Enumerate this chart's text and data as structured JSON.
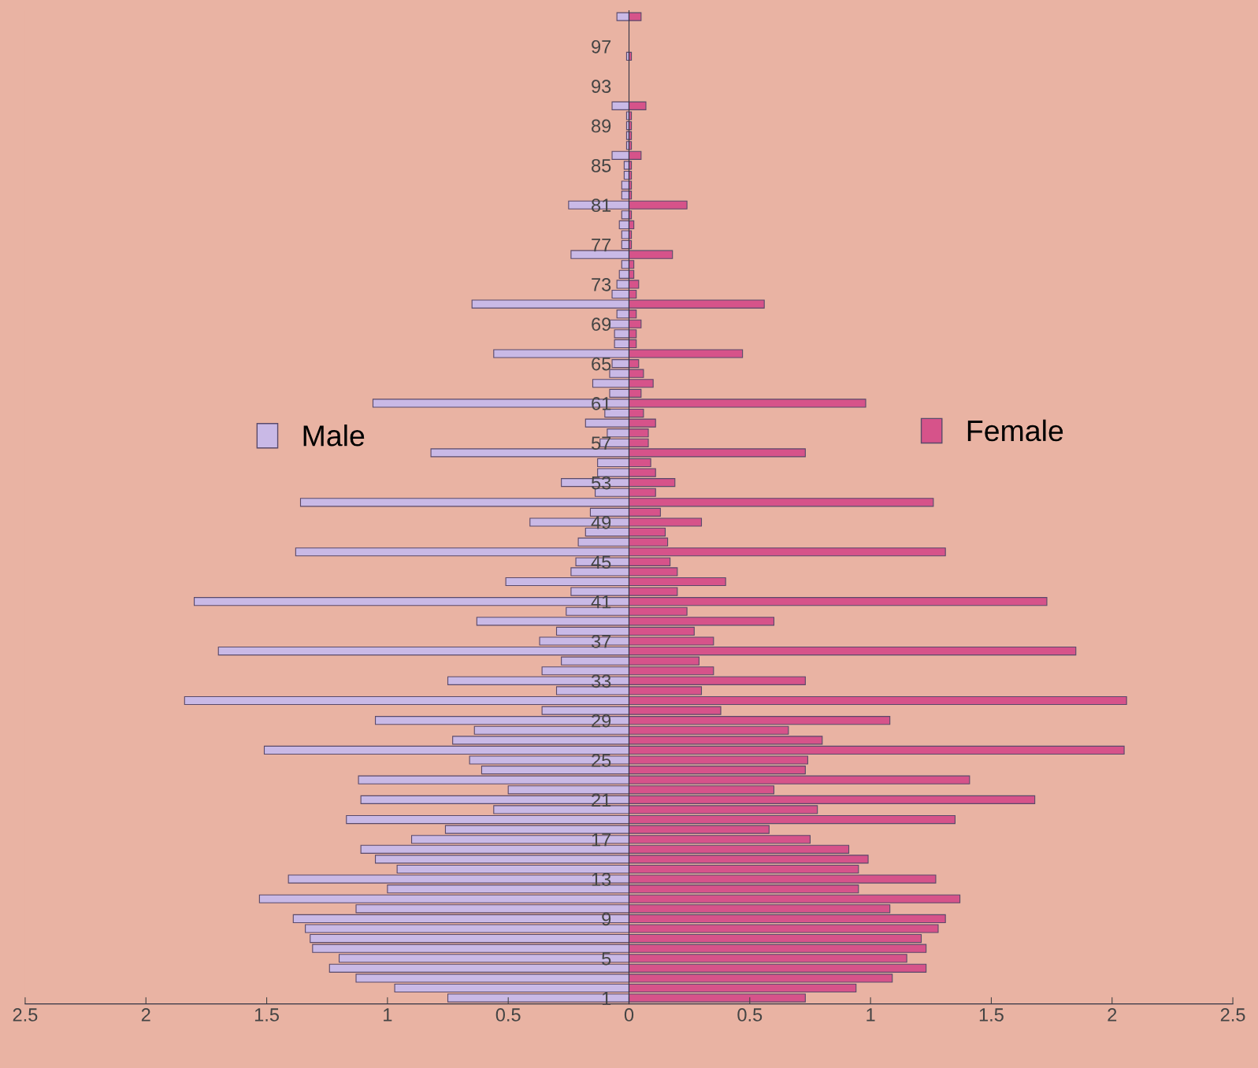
{
  "chart_data": {
    "type": "bar",
    "orientation": "horizontal",
    "categories": [
      null,
      null,
      null,
      "97",
      null,
      null,
      null,
      "93",
      null,
      null,
      null,
      "89",
      null,
      null,
      null,
      "85",
      null,
      null,
      null,
      "81",
      null,
      null,
      null,
      "77",
      null,
      null,
      null,
      "73",
      null,
      null,
      null,
      "69",
      null,
      null,
      null,
      "65",
      null,
      null,
      null,
      "61",
      null,
      null,
      null,
      "57",
      null,
      null,
      null,
      "53",
      null,
      null,
      null,
      "49",
      null,
      null,
      null,
      "45",
      null,
      null,
      null,
      "41",
      null,
      null,
      null,
      "37",
      null,
      null,
      null,
      "33",
      null,
      null,
      null,
      "29",
      null,
      null,
      null,
      "25",
      null,
      null,
      null,
      "21",
      null,
      null,
      null,
      "17",
      null,
      null,
      null,
      "13",
      null,
      null,
      null,
      "9",
      null,
      null,
      null,
      "5",
      null,
      null,
      null,
      "1"
    ],
    "series": [
      {
        "name": "Male",
        "color": "#c9b9e6",
        "values": [
          -0.05,
          0,
          0,
          0,
          -0.01,
          0,
          0,
          0,
          0,
          -0.07,
          -0.01,
          -0.01,
          -0.01,
          -0.01,
          -0.07,
          -0.02,
          -0.02,
          -0.03,
          -0.03,
          -0.25,
          -0.03,
          -0.04,
          -0.03,
          -0.03,
          -0.24,
          -0.03,
          -0.04,
          -0.05,
          -0.07,
          -0.65,
          -0.05,
          -0.08,
          -0.06,
          -0.06,
          -0.56,
          -0.07,
          -0.08,
          -0.15,
          -0.08,
          -1.06,
          -0.1,
          -0.18,
          -0.09,
          -0.12,
          -0.82,
          -0.13,
          -0.13,
          -0.28,
          -0.14,
          -1.36,
          -0.16,
          -0.41,
          -0.18,
          -0.21,
          -1.38,
          -0.22,
          -0.24,
          -0.51,
          -0.24,
          -1.8,
          -0.26,
          -0.63,
          -0.3,
          -0.37,
          -1.7,
          -0.28,
          -0.36,
          -0.75,
          -0.3,
          -1.84,
          -0.36,
          -1.05,
          -0.64,
          -0.73,
          -1.51,
          -0.66,
          -0.61,
          -1.12,
          -0.5,
          -1.11,
          -0.56,
          -1.17,
          -0.76,
          -0.9,
          -1.11,
          -1.05,
          -0.96,
          -1.41,
          -1.0,
          -1.53,
          -1.13,
          -1.39,
          -1.34,
          -1.32,
          -1.31,
          -1.2,
          -1.24,
          -1.13,
          -0.97,
          -0.75
        ]
      },
      {
        "name": "Female",
        "color": "#d6538a",
        "values": [
          0.05,
          0,
          0,
          0,
          0.01,
          0,
          0,
          0,
          0,
          0.07,
          0.01,
          0.01,
          0.01,
          0.01,
          0.05,
          0.01,
          0.01,
          0.01,
          0.01,
          0.24,
          0.01,
          0.02,
          0.01,
          0.01,
          0.18,
          0.02,
          0.02,
          0.04,
          0.03,
          0.56,
          0.03,
          0.05,
          0.03,
          0.03,
          0.47,
          0.04,
          0.06,
          0.1,
          0.05,
          0.98,
          0.06,
          0.11,
          0.08,
          0.08,
          0.73,
          0.09,
          0.11,
          0.19,
          0.11,
          1.26,
          0.13,
          0.3,
          0.15,
          0.16,
          1.31,
          0.17,
          0.2,
          0.4,
          0.2,
          1.73,
          0.24,
          0.6,
          0.27,
          0.35,
          1.85,
          0.29,
          0.35,
          0.73,
          0.3,
          2.06,
          0.38,
          1.08,
          0.66,
          0.8,
          2.05,
          0.74,
          0.73,
          1.41,
          0.6,
          1.68,
          0.78,
          1.35,
          0.58,
          0.75,
          0.91,
          0.99,
          0.95,
          1.27,
          0.95,
          1.37,
          1.08,
          1.31,
          1.28,
          1.21,
          1.23,
          1.15,
          1.23,
          1.09,
          0.94,
          0.73
        ]
      }
    ],
    "xlim": [
      -2.5,
      2.5
    ],
    "xticks": [
      {
        "value": -2.5,
        "label": "2.5"
      },
      {
        "value": -2,
        "label": "2"
      },
      {
        "value": -1.5,
        "label": "1.5"
      },
      {
        "value": -1,
        "label": "1"
      },
      {
        "value": -0.5,
        "label": "0.5"
      },
      0,
      0.5,
      1,
      1.5,
      2,
      2.5
    ],
    "stacked": true,
    "legend": "left",
    "grid": false
  }
}
